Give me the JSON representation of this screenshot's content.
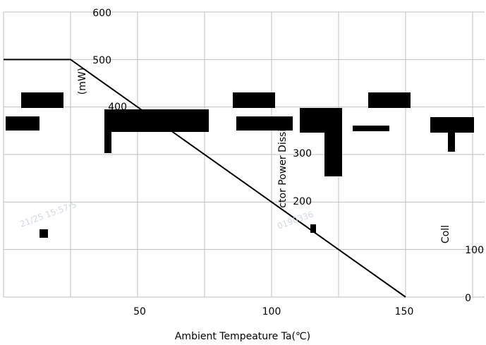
{
  "chart_data": {
    "type": "line",
    "title": "",
    "xlabel": "Ambient Tempeature Ta(℃)",
    "ylabel_fragments": [
      "(mW)",
      "ctor Power Dissipa",
      "Coll"
    ],
    "xlim": [
      0,
      150
    ],
    "ylim": [
      0,
      600
    ],
    "y_ticks": [
      {
        "value": 600,
        "label": "600"
      },
      {
        "value": 500,
        "label": "500"
      },
      {
        "value": 400,
        "label": "400"
      },
      {
        "value": 300,
        "label": "300"
      },
      {
        "value": 200,
        "label": "200"
      },
      {
        "value": 100,
        "label": "100"
      },
      {
        "value": 0,
        "label": "0"
      }
    ],
    "x_ticks": [
      {
        "value": 0,
        "label": ""
      },
      {
        "value": 50,
        "label": "50"
      },
      {
        "value": 100,
        "label": "100"
      },
      {
        "value": 150,
        "label": "150"
      }
    ],
    "series": [
      {
        "x": [
          0,
          25,
          150
        ],
        "y": [
          500,
          500,
          0
        ]
      }
    ],
    "grid": true,
    "legend": "none"
  },
  "watermark": [
    "21/25 15:57:5",
    "0190336"
  ]
}
